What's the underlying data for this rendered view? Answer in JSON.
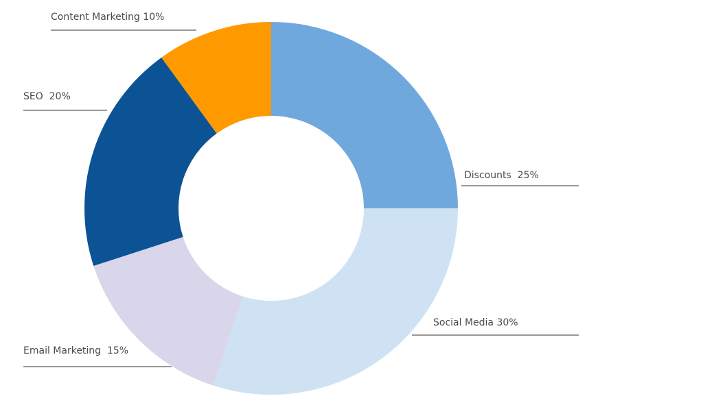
{
  "chart_data": {
    "type": "pie",
    "donut": true,
    "title": "",
    "slices": [
      {
        "label": "Discounts",
        "value": 25,
        "text": "Discounts  25%",
        "color": "#6fa8dc"
      },
      {
        "label": "Social Media",
        "value": 30,
        "text": "Social Media 30%",
        "color": "#cfe2f3"
      },
      {
        "label": "Email Marketing",
        "value": 15,
        "text": "Email Marketing  15%",
        "color": "#d9d5ea"
      },
      {
        "label": "SEO",
        "value": 20,
        "text": "SEO  20%",
        "color": "#0b5394"
      },
      {
        "label": "Content Marketing",
        "value": 10,
        "text": "Content Marketing 10%",
        "color": "#ff9900"
      }
    ],
    "legend": "none",
    "grid": false
  }
}
